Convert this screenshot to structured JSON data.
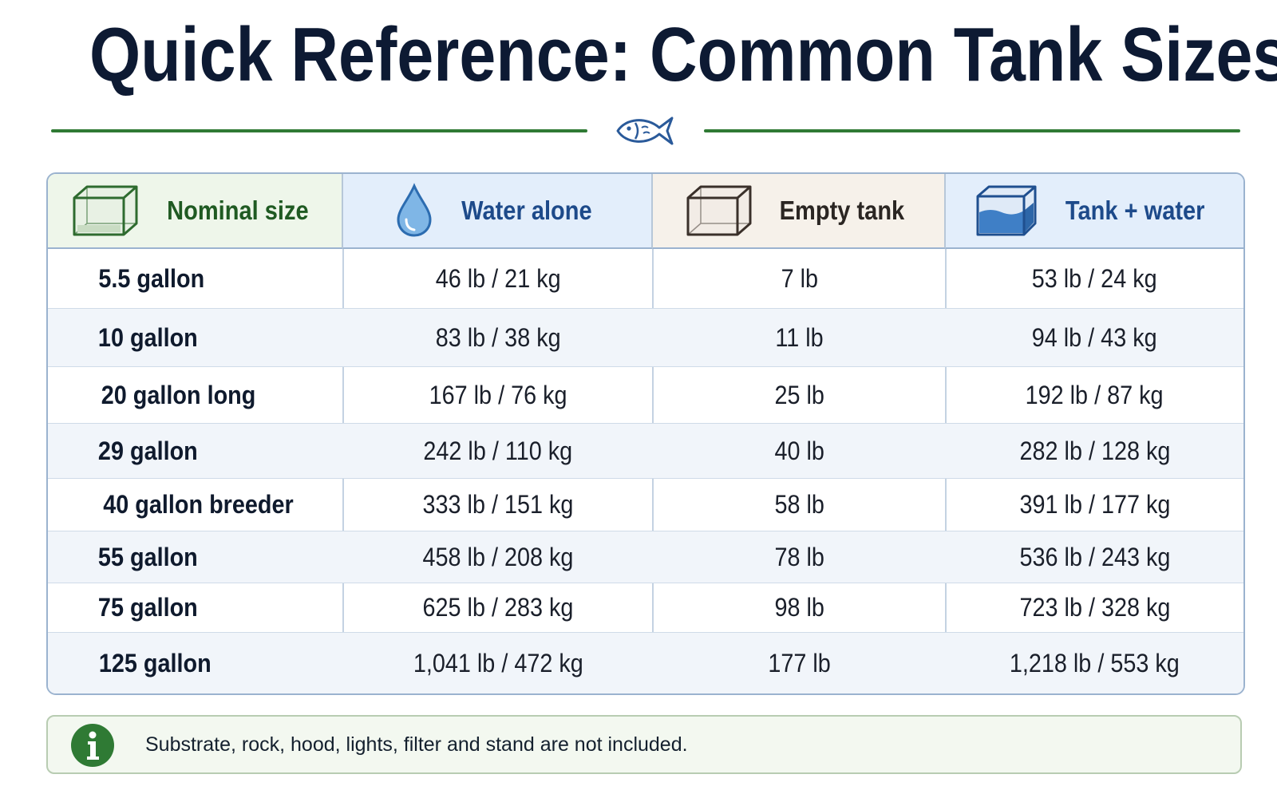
{
  "title": "Quick Reference: Common Tank Sizes",
  "header": {
    "columns": [
      {
        "label": "Nominal size",
        "icon": "empty-tank-green-icon"
      },
      {
        "label": "Water alone",
        "icon": "water-drop-icon"
      },
      {
        "label": "Empty tank",
        "icon": "empty-tank-icon"
      },
      {
        "label": "Tank + water",
        "icon": "filled-tank-icon"
      }
    ]
  },
  "rows": [
    {
      "size": "5.5 gallon",
      "water": "46 lb / 21 kg",
      "empty": "7 lb",
      "total": "53 lb / 24 kg"
    },
    {
      "size": "10 gallon",
      "water": "83 lb / 38 kg",
      "empty": "11 lb",
      "total": "94 lb / 43 kg"
    },
    {
      "size": "20 gallon long",
      "water": "167 lb / 76 kg",
      "empty": "25 lb",
      "total": "192 lb / 87 kg"
    },
    {
      "size": "29 gallon",
      "water": "242 lb / 110 kg",
      "empty": "40 lb",
      "total": "282 lb / 128 kg"
    },
    {
      "size": "40 gallon breeder",
      "water": "333 lb / 151 kg",
      "empty": "58 lb",
      "total": "391 lb / 177 kg"
    },
    {
      "size": "55 gallon",
      "water": "458 lb / 208 kg",
      "empty": "78 lb",
      "total": "536 lb / 243 kg"
    },
    {
      "size": "75 gallon",
      "water": "625 lb / 283 kg",
      "empty": "98 lb",
      "total": "723 lb / 328 kg"
    },
    {
      "size": "125 gallon",
      "water": "1,041 lb / 472 kg",
      "empty": "177 lb",
      "total": "1,218 lb / 553 kg"
    }
  ],
  "note": {
    "text": "Substrate, rock, hood, lights, filter and stand are not included.",
    "icon": "info-icon"
  },
  "colors": {
    "title": "#0d1a33",
    "accent_green": "#2f7a34",
    "accent_blue": "#1d4a8a",
    "border": "#9bb3cf"
  }
}
